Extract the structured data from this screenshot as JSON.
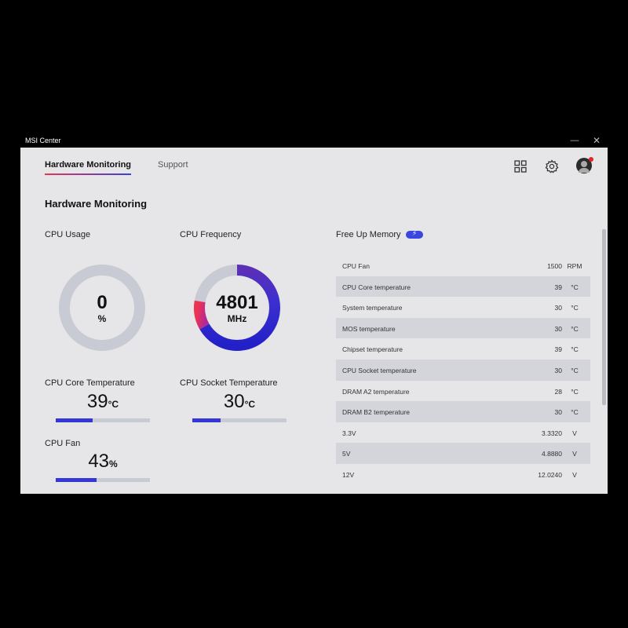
{
  "window": {
    "title": "MSI Center",
    "minimize": "—",
    "close": "✕"
  },
  "tabs": [
    {
      "label": "Hardware Monitoring"
    },
    {
      "label": "Support"
    }
  ],
  "icons": {
    "grid": "grid-icon",
    "gear": "gear-icon",
    "avatar": "avatar-icon"
  },
  "page_title": "Hardware Monitoring",
  "cpu_usage": {
    "label": "CPU Usage",
    "value": "0",
    "unit": "%",
    "fraction": 0
  },
  "cpu_frequency": {
    "label": "CPU Frequency",
    "value": "4801",
    "unit": "MHz",
    "fraction": 0.8
  },
  "cpu_core_temp": {
    "label": "CPU Core Temperature",
    "value": "39",
    "unit": "°C",
    "fraction": 0.39
  },
  "cpu_socket_temp": {
    "label": "CPU Socket Temperature",
    "value": "30",
    "unit": "°C",
    "fraction": 0.3
  },
  "cpu_fan": {
    "label": "CPU Fan",
    "value": "43",
    "unit": "%",
    "fraction": 0.43
  },
  "free_up_memory": {
    "label": "Free Up Memory",
    "icon": "lightning-icon"
  },
  "sensors": [
    {
      "name": "CPU Fan",
      "value": "1500",
      "unit": "RPM"
    },
    {
      "name": "CPU Core temperature",
      "value": "39",
      "unit": "°C"
    },
    {
      "name": "System temperature",
      "value": "30",
      "unit": "°C"
    },
    {
      "name": "MOS temperature",
      "value": "30",
      "unit": "°C"
    },
    {
      "name": "Chipset temperature",
      "value": "39",
      "unit": "°C"
    },
    {
      "name": "CPU Socket temperature",
      "value": "30",
      "unit": "°C"
    },
    {
      "name": "DRAM A2 temperature",
      "value": "28",
      "unit": "°C"
    },
    {
      "name": "DRAM B2 temperature",
      "value": "30",
      "unit": "°C"
    },
    {
      "name": "3.3V",
      "value": "3.3320",
      "unit": "V"
    },
    {
      "name": "5V",
      "value": "4.8880",
      "unit": "V"
    },
    {
      "name": "12V",
      "value": "12.0240",
      "unit": "V"
    }
  ],
  "colors": {
    "accent_blue": "#3436d6",
    "accent_red": "#e4365a",
    "panel_bg": "#e6e6e8",
    "track": "#c8cbd3"
  }
}
